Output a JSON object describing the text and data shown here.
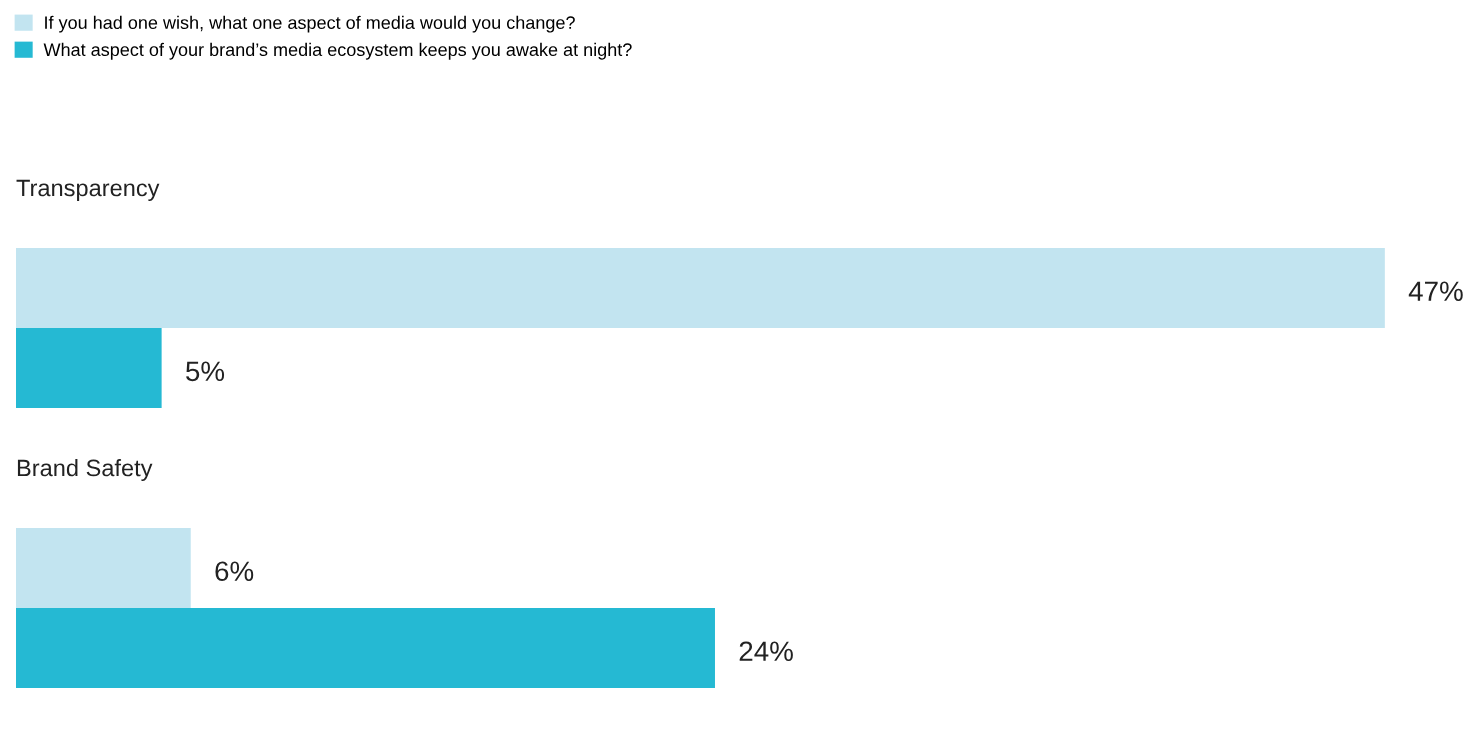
{
  "chart_data": {
    "type": "bar",
    "orientation": "horizontal",
    "categories": [
      "Transparency",
      "Brand Safety"
    ],
    "series": [
      {
        "name": "If you had one wish, what one aspect of media would you change?",
        "color": "#c2e4f0",
        "values": [
          47,
          6
        ],
        "value_labels": [
          "47%",
          "6%"
        ]
      },
      {
        "name": "What aspect of your brand’s media ecosystem keeps you awake at night?",
        "color": "#25b9d3",
        "values": [
          5,
          24
        ],
        "value_labels": [
          "5%",
          "24%"
        ]
      }
    ],
    "tick_labels": false,
    "legend": "top left"
  }
}
